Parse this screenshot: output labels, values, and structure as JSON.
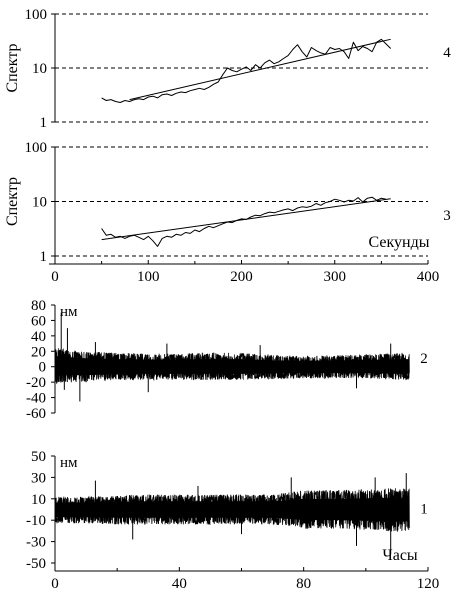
{
  "chart_data": [
    {
      "id": "panel4",
      "type": "line",
      "panel_label": "4",
      "ylabel": "Спектр",
      "yscale": "log",
      "ylim": [
        1,
        100
      ],
      "yticks": [
        1,
        10,
        100
      ],
      "xlim": [
        0,
        400
      ],
      "grid": "dashed-horizontal",
      "series": [
        {
          "x": [
            50,
            55,
            60,
            65,
            70,
            75,
            80,
            85,
            90,
            95,
            100,
            105,
            110,
            115,
            120,
            125,
            130,
            135,
            140,
            145,
            150,
            155,
            160,
            165,
            170,
            175,
            180,
            185,
            190,
            195,
            200,
            205,
            210,
            215,
            220,
            225,
            230,
            235,
            240,
            245,
            250,
            255,
            260,
            265,
            270,
            275,
            280,
            285,
            290,
            295,
            300,
            305,
            310,
            315,
            320,
            325,
            330,
            335,
            340,
            345,
            350,
            355,
            360
          ],
          "y": [
            2.8,
            2.5,
            2.6,
            2.4,
            2.3,
            2.5,
            2.4,
            2.6,
            2.7,
            2.6,
            2.9,
            3.0,
            2.8,
            3.2,
            3.3,
            3.1,
            3.4,
            3.6,
            3.5,
            3.8,
            4.0,
            4.2,
            4.0,
            4.4,
            5.0,
            5.5,
            7.5,
            10.0,
            9.0,
            8.5,
            9.5,
            10.5,
            9.0,
            11.5,
            10.0,
            12.5,
            14.0,
            12.0,
            13.0,
            15.0,
            17.0,
            22.0,
            27.0,
            20.0,
            16.0,
            24.0,
            21.0,
            19.0,
            18.0,
            24.0,
            22.0,
            23.0,
            20.0,
            15.0,
            30.0,
            21.0,
            25.0,
            23.0,
            20.0,
            30.0,
            34.0,
            28.0,
            23.0
          ]
        },
        {
          "x": [
            80,
            360
          ],
          "y": [
            2.6,
            34
          ]
        }
      ]
    },
    {
      "id": "panel3",
      "type": "line",
      "panel_label": "3",
      "ylabel": "Спектр",
      "xlabel": "Секунды",
      "yscale": "log",
      "ylim": [
        1,
        100
      ],
      "yticks": [
        1,
        10,
        100
      ],
      "xlim": [
        0,
        400
      ],
      "xticks": [
        0,
        100,
        200,
        300,
        400
      ],
      "grid": "dashed-horizontal",
      "series": [
        {
          "x": [
            50,
            55,
            60,
            65,
            70,
            75,
            80,
            85,
            90,
            95,
            100,
            105,
            110,
            115,
            120,
            125,
            130,
            135,
            140,
            145,
            150,
            155,
            160,
            165,
            170,
            175,
            180,
            185,
            190,
            195,
            200,
            205,
            210,
            215,
            220,
            225,
            230,
            235,
            240,
            245,
            250,
            255,
            260,
            265,
            270,
            275,
            280,
            285,
            290,
            295,
            300,
            305,
            310,
            315,
            320,
            325,
            330,
            335,
            340,
            345,
            350,
            355
          ],
          "y": [
            3.2,
            2.4,
            2.5,
            2.2,
            2.3,
            2.1,
            2.3,
            2.4,
            2.2,
            2.0,
            2.3,
            1.9,
            1.5,
            2.1,
            2.3,
            2.2,
            2.5,
            2.4,
            2.7,
            2.6,
            3.0,
            2.8,
            3.2,
            3.5,
            3.3,
            3.6,
            3.9,
            4.2,
            4.1,
            4.5,
            4.8,
            4.7,
            5.2,
            5.6,
            5.5,
            6.0,
            6.4,
            6.2,
            6.6,
            7.0,
            7.3,
            6.8,
            7.6,
            8.0,
            7.8,
            8.2,
            9.2,
            8.5,
            9.5,
            10.0,
            11.0,
            10.5,
            9.8,
            10.5,
            10.2,
            11.8,
            9.8,
            11.5,
            12.0,
            10.5,
            11.5,
            11.0
          ]
        },
        {
          "x": [
            50,
            360
          ],
          "y": [
            2.0,
            11.2
          ]
        }
      ]
    },
    {
      "id": "panel2",
      "type": "line",
      "panel_label": "2",
      "unit": "нм",
      "ylim": [
        -60,
        80
      ],
      "yticks": [
        -60,
        -40,
        -20,
        0,
        20,
        40,
        60,
        80
      ],
      "xlim": [
        0,
        120
      ],
      "envelope": {
        "x": [
          0,
          5,
          10,
          20,
          30,
          40,
          50,
          60,
          70,
          80,
          90,
          100,
          110,
          114
        ],
        "upper": [
          25,
          22,
          20,
          18,
          17,
          17,
          18,
          18,
          15,
          14,
          15,
          16,
          18,
          18
        ],
        "lower": [
          -22,
          -20,
          -20,
          -17,
          -17,
          -17,
          -17,
          -17,
          -16,
          -15,
          -15,
          -15,
          -17,
          -17
        ]
      },
      "peaks": {
        "x": [
          2,
          3,
          4,
          8,
          13,
          30,
          36,
          66,
          97,
          108
        ],
        "y": [
          70,
          -30,
          50,
          -45,
          32,
          -33,
          30,
          28,
          -28,
          30
        ]
      }
    },
    {
      "id": "panel1",
      "type": "line",
      "panel_label": "1",
      "unit": "нм",
      "xlabel": "Часы",
      "ylim": [
        -50,
        50
      ],
      "yticks": [
        -50,
        -30,
        -10,
        10,
        30,
        50
      ],
      "xlim": [
        0,
        120
      ],
      "xticks": [
        0,
        40,
        80,
        120
      ],
      "envelope": {
        "x": [
          0,
          10,
          20,
          30,
          40,
          50,
          60,
          70,
          75,
          80,
          90,
          100,
          110,
          114
        ],
        "upper": [
          12,
          12,
          13,
          14,
          14,
          14,
          14,
          14,
          16,
          18,
          18,
          19,
          20,
          20
        ],
        "lower": [
          -13,
          -13,
          -14,
          -14,
          -14,
          -14,
          -14,
          -14,
          -16,
          -18,
          -18,
          -19,
          -21,
          -20
        ]
      },
      "peaks": {
        "x": [
          13,
          25,
          46,
          60,
          76,
          97,
          103,
          108,
          113
        ],
        "y": [
          27,
          -28,
          22,
          -23,
          30,
          -34,
          30,
          -42,
          34
        ]
      }
    }
  ]
}
